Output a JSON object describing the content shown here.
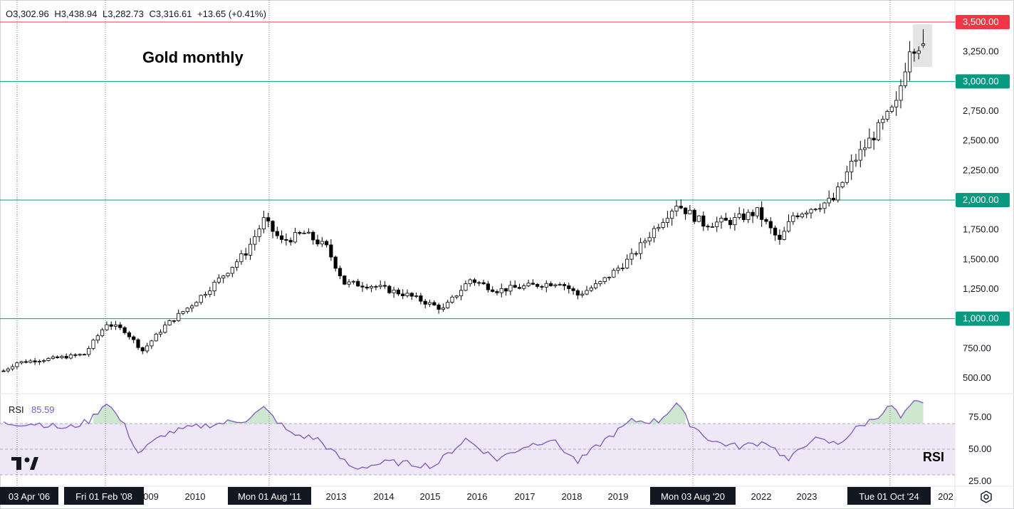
{
  "header": {
    "open_label": "O",
    "open_value": "3,302.96",
    "high_label": "H",
    "high_value": "3,438.94",
    "low_label": "L",
    "low_value": "3,282.73",
    "close_label": "C",
    "close_value": "3,316.61",
    "change": "+13.65 (+0.41%)"
  },
  "annotation_title": "Gold monthly",
  "rsi_pane": {
    "label": "RSI",
    "value": "85.59",
    "right_label": "RSI",
    "ticks": [
      "75.00",
      "50.00",
      "25.00"
    ]
  },
  "price_axis": {
    "ticks": [
      "3,250.00",
      "2,750.00",
      "2,500.00",
      "2,250.00",
      "1,750.00",
      "1,500.00",
      "1,250.00",
      "750.00",
      "500.00"
    ],
    "highlight_ticks": [
      {
        "label": "3,500.00",
        "value": 3500,
        "color": "#f23645"
      },
      {
        "label": "3,000.00",
        "value": 3000,
        "color": "#089981"
      },
      {
        "label": "2,000.00",
        "value": 2000,
        "color": "#089981"
      },
      {
        "label": "1,000.00",
        "value": 1000,
        "color": "#089981"
      }
    ]
  },
  "time_axis": {
    "years": [
      "009",
      "2010",
      "2013",
      "2014",
      "2015",
      "2016",
      "2017",
      "2018",
      "2019",
      "2022",
      "2023",
      "202"
    ],
    "date_markers": [
      "03 Apr '06",
      "Fri 01 Feb '08",
      "Mon 01 Aug '11",
      "Mon 03 Aug '20",
      "Tue 01 Oct '24"
    ]
  },
  "colors": {
    "support_line": "#089981",
    "resistance_line": "#f23645",
    "rsi_line": "#7e57c2",
    "rsi_band": "#ede7f6",
    "rsi_overbought_fill": "#c8e6c9"
  },
  "settings_icon": "gear-icon",
  "logo": "tradingview-logo",
  "chart_data": {
    "type": "candlestick",
    "title": "Gold monthly",
    "price_levels": [
      1000,
      2000,
      3000,
      3500
    ],
    "ylim": [
      400,
      3600
    ],
    "rsi_levels": [
      30,
      50,
      70
    ],
    "rsi_ylim": [
      20,
      90
    ],
    "last": {
      "open": 3302.96,
      "high": 3438.94,
      "low": 3282.73,
      "close": 3316.61
    },
    "anchors": [
      {
        "t": 0,
        "v": 560
      },
      {
        "t": 3,
        "v": 630
      },
      {
        "t": 10,
        "v": 660
      },
      {
        "t": 18,
        "v": 700
      },
      {
        "t": 23,
        "v": 960
      },
      {
        "t": 27,
        "v": 900
      },
      {
        "t": 31,
        "v": 730
      },
      {
        "t": 36,
        "v": 940
      },
      {
        "t": 42,
        "v": 1120
      },
      {
        "t": 48,
        "v": 1330
      },
      {
        "t": 54,
        "v": 1560
      },
      {
        "t": 58,
        "v": 1830
      },
      {
        "t": 62,
        "v": 1650
      },
      {
        "t": 67,
        "v": 1720
      },
      {
        "t": 72,
        "v": 1600
      },
      {
        "t": 76,
        "v": 1300
      },
      {
        "t": 82,
        "v": 1280
      },
      {
        "t": 90,
        "v": 1200
      },
      {
        "t": 98,
        "v": 1080
      },
      {
        "t": 104,
        "v": 1330
      },
      {
        "t": 110,
        "v": 1240
      },
      {
        "t": 118,
        "v": 1280
      },
      {
        "t": 124,
        "v": 1310
      },
      {
        "t": 128,
        "v": 1200
      },
      {
        "t": 133,
        "v": 1300
      },
      {
        "t": 140,
        "v": 1520
      },
      {
        "t": 146,
        "v": 1800
      },
      {
        "t": 150,
        "v": 1970
      },
      {
        "t": 156,
        "v": 1800
      },
      {
        "t": 162,
        "v": 1820
      },
      {
        "t": 168,
        "v": 1900
      },
      {
        "t": 173,
        "v": 1650
      },
      {
        "t": 176,
        "v": 1870
      },
      {
        "t": 181,
        "v": 1950
      },
      {
        "t": 185,
        "v": 2000
      },
      {
        "t": 189,
        "v": 2300
      },
      {
        "t": 193,
        "v": 2500
      },
      {
        "t": 196,
        "v": 2650
      },
      {
        "t": 199,
        "v": 2800
      },
      {
        "t": 202,
        "v": 3300
      },
      {
        "t": 205,
        "v": 3316
      }
    ],
    "rsi_anchors": [
      {
        "t": 0,
        "v": 70
      },
      {
        "t": 8,
        "v": 70
      },
      {
        "t": 14,
        "v": 66
      },
      {
        "t": 19,
        "v": 72
      },
      {
        "t": 23,
        "v": 87
      },
      {
        "t": 27,
        "v": 68
      },
      {
        "t": 30,
        "v": 47
      },
      {
        "t": 36,
        "v": 62
      },
      {
        "t": 42,
        "v": 67
      },
      {
        "t": 48,
        "v": 70
      },
      {
        "t": 54,
        "v": 73
      },
      {
        "t": 58,
        "v": 82
      },
      {
        "t": 64,
        "v": 62
      },
      {
        "t": 70,
        "v": 58
      },
      {
        "t": 74,
        "v": 46
      },
      {
        "t": 78,
        "v": 35
      },
      {
        "t": 86,
        "v": 40
      },
      {
        "t": 96,
        "v": 37
      },
      {
        "t": 103,
        "v": 58
      },
      {
        "t": 110,
        "v": 42
      },
      {
        "t": 116,
        "v": 52
      },
      {
        "t": 122,
        "v": 58
      },
      {
        "t": 128,
        "v": 40
      },
      {
        "t": 134,
        "v": 57
      },
      {
        "t": 140,
        "v": 72
      },
      {
        "t": 146,
        "v": 72
      },
      {
        "t": 150,
        "v": 86
      },
      {
        "t": 153,
        "v": 70
      },
      {
        "t": 158,
        "v": 56
      },
      {
        "t": 164,
        "v": 52
      },
      {
        "t": 170,
        "v": 56
      },
      {
        "t": 175,
        "v": 41
      },
      {
        "t": 180,
        "v": 58
      },
      {
        "t": 186,
        "v": 54
      },
      {
        "t": 190,
        "v": 66
      },
      {
        "t": 194,
        "v": 74
      },
      {
        "t": 198,
        "v": 84
      },
      {
        "t": 200,
        "v": 74
      },
      {
        "t": 203,
        "v": 86
      },
      {
        "t": 205,
        "v": 86
      }
    ]
  }
}
